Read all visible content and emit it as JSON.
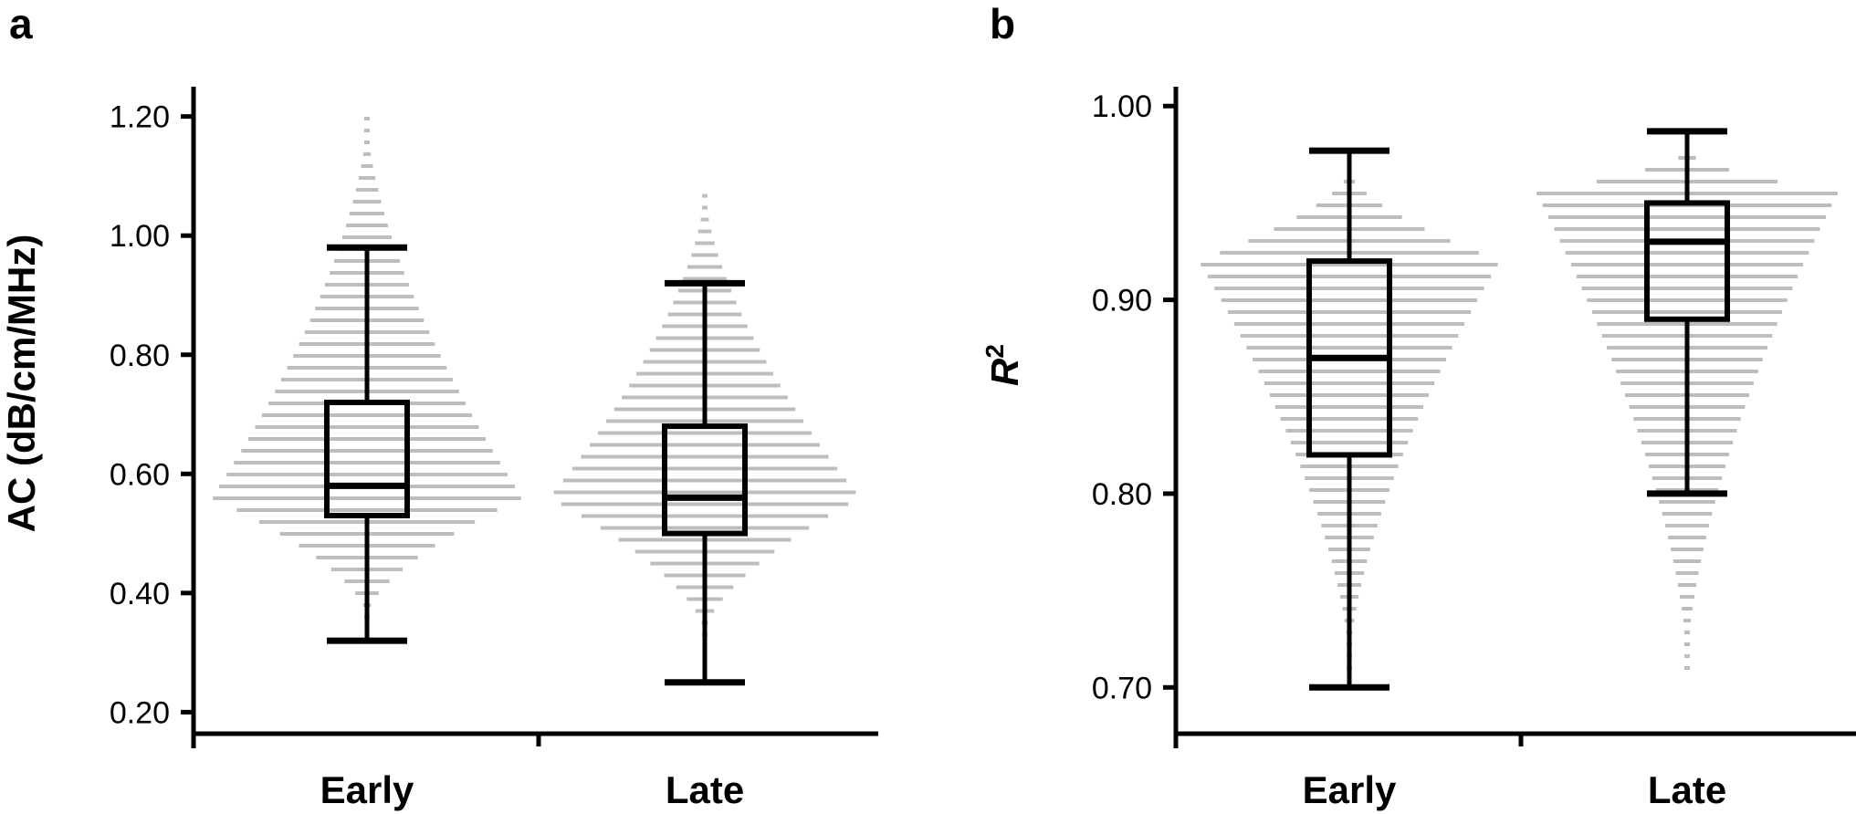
{
  "chart_data": [
    {
      "panel": "a",
      "type": "box",
      "categories": [
        "Early",
        "Late"
      ],
      "ylabel": "AC (dB/cm/MHz)",
      "ylim": [
        0.17,
        1.25
      ],
      "yticks": [
        0.2,
        0.4,
        0.6,
        0.8,
        1.0,
        1.2
      ],
      "ytick_labels": [
        "0.20",
        "0.40",
        "0.60",
        "0.80",
        "1.00",
        "1.20"
      ],
      "boxes": [
        {
          "name": "Early",
          "whisker_low": 0.32,
          "q1": 0.53,
          "median": 0.58,
          "q3": 0.72,
          "whisker_high": 0.98
        },
        {
          "name": "Late",
          "whisker_low": 0.25,
          "q1": 0.5,
          "median": 0.56,
          "q3": 0.68,
          "whisker_high": 0.92
        }
      ],
      "distribution": [
        {
          "name": "Early",
          "data_min": 0.36,
          "data_max": 1.2,
          "mode": 0.56
        },
        {
          "name": "Late",
          "data_min": 0.33,
          "data_max": 1.08,
          "mode": 0.56
        }
      ]
    },
    {
      "panel": "b",
      "type": "box",
      "categories": [
        "Early",
        "Late"
      ],
      "ylabel": "R",
      "ylabel_sup": "2",
      "ylim": [
        0.678,
        1.01
      ],
      "yticks": [
        0.7,
        0.8,
        0.9,
        1.0
      ],
      "ytick_labels": [
        "0.70",
        "0.80",
        "0.90",
        "1.00"
      ],
      "boxes": [
        {
          "name": "Early",
          "whisker_low": 0.7,
          "q1": 0.82,
          "median": 0.87,
          "q3": 0.92,
          "whisker_high": 0.977
        },
        {
          "name": "Late",
          "whisker_low": 0.8,
          "q1": 0.89,
          "median": 0.93,
          "q3": 0.95,
          "whisker_high": 0.987
        }
      ],
      "distribution": [
        {
          "name": "Early",
          "data_min": 0.71,
          "data_max": 0.967,
          "mode": 0.92
        },
        {
          "name": "Late",
          "data_min": 0.71,
          "data_max": 0.977,
          "mode": 0.955
        }
      ]
    }
  ]
}
